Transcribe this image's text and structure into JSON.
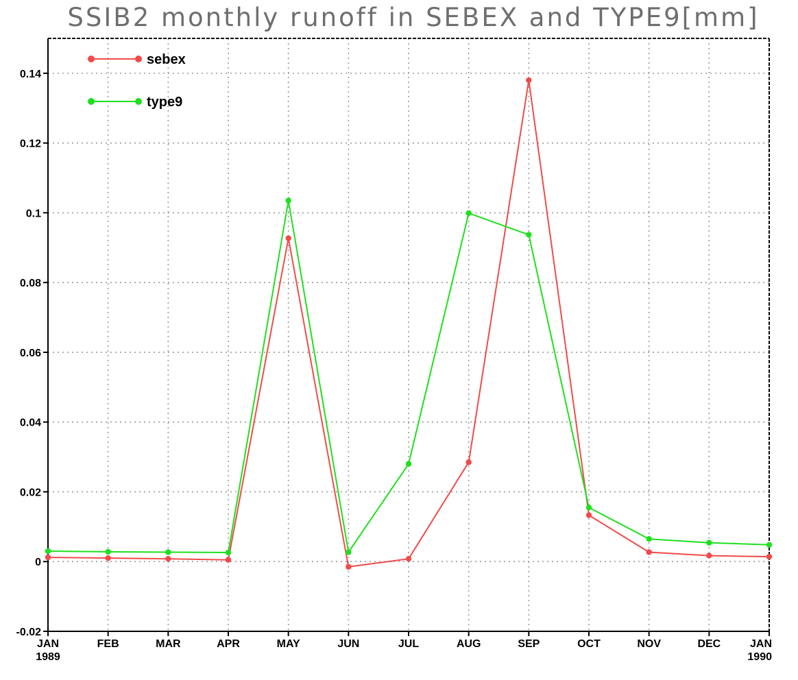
{
  "chart_data": {
    "type": "line",
    "title": "SSIB2 monthly runoff in SEBEX and TYPE9[mm]",
    "xlabel": "",
    "ylabel": "",
    "categories": [
      "JAN",
      "FEB",
      "MAR",
      "APR",
      "MAY",
      "JUN",
      "JUL",
      "AUG",
      "SEP",
      "OCT",
      "NOV",
      "DEC",
      "JAN"
    ],
    "x_tick_labels": [
      {
        "month": "JAN",
        "year": "1989"
      },
      {
        "month": "FEB",
        "year": ""
      },
      {
        "month": "MAR",
        "year": ""
      },
      {
        "month": "APR",
        "year": ""
      },
      {
        "month": "MAY",
        "year": ""
      },
      {
        "month": "JUN",
        "year": ""
      },
      {
        "month": "JUL",
        "year": ""
      },
      {
        "month": "AUG",
        "year": ""
      },
      {
        "month": "SEP",
        "year": ""
      },
      {
        "month": "OCT",
        "year": ""
      },
      {
        "month": "NOV",
        "year": ""
      },
      {
        "month": "DEC",
        "year": ""
      },
      {
        "month": "JAN",
        "year": "1990"
      }
    ],
    "ylim": [
      -0.02,
      0.15
    ],
    "y_ticks": [
      -0.02,
      0,
      0.02,
      0.04,
      0.06,
      0.08,
      0.1,
      0.12,
      0.14
    ],
    "y_tick_labels": [
      "-0.02",
      "0",
      "0.02",
      "0.04",
      "0.06",
      "0.08",
      "0.1",
      "0.12",
      "0.14"
    ],
    "grid": true,
    "legend_position": "top-left",
    "series": [
      {
        "name": "sebex",
        "color": "#f24a4a",
        "values": [
          0.0012,
          0.001,
          0.0008,
          0.0005,
          0.0927,
          -0.0015,
          0.0008,
          0.0285,
          0.138,
          0.0133,
          0.0027,
          0.0017,
          0.0014
        ]
      },
      {
        "name": "type9",
        "color": "#1ee01e",
        "values": [
          0.003,
          0.0028,
          0.0027,
          0.0026,
          0.1035,
          0.0027,
          0.028,
          0.0999,
          0.0937,
          0.0155,
          0.0065,
          0.0054,
          0.0048
        ]
      }
    ]
  }
}
